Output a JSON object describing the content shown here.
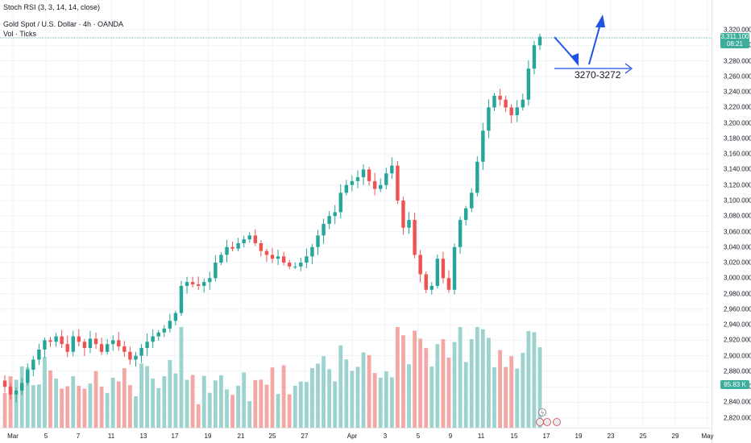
{
  "indicator": {
    "stoch_rsi": "Stoch RSI (3, 3, 14, 14, close)",
    "symbol_title": "Gold Spot / U.S. Dollar · 4h · OANDA",
    "volume": "Vol · Ticks"
  },
  "price_axis": {
    "labels": [
      "3,320.000",
      "3,300.000",
      "3,280.000",
      "3,260.000",
      "3,240.000",
      "3,220.000",
      "3,200.000",
      "3,180.000",
      "3,160.000",
      "3,140.000",
      "3,120.000",
      "3,100.000",
      "3,080.000",
      "3,060.000",
      "3,040.000",
      "3,020.000",
      "3,000.000",
      "2,980.000",
      "2,960.000",
      "2,940.000",
      "2,920.000",
      "2,900.000",
      "2,880.000",
      "2,860.000",
      "2,840.000",
      "2,820.000"
    ]
  },
  "time_axis": {
    "labels": [
      "Mar",
      "5",
      "7",
      "11",
      "13",
      "17",
      "19",
      "21",
      "25",
      "27",
      "Apr",
      "3",
      "5",
      "9",
      "11",
      "15",
      "17",
      "19",
      "23",
      "25",
      "29",
      "May"
    ]
  },
  "last_price": {
    "value": "3,311.100",
    "countdown": "08:21",
    "color": "#3dae9b"
  },
  "volume_badge": {
    "value": "85.83 K",
    "color": "#3dae9b"
  },
  "annotation": {
    "label": "3270-3272",
    "color": "#1e53e5"
  },
  "colors": {
    "up": "#26a69a",
    "down": "#ef5350",
    "vol_up": "#9dd3ce",
    "vol_down": "#f4a8a6",
    "grid": "#f0f3fa"
  },
  "chart_data": {
    "type": "candlestick",
    "symbol": "Gold Spot / U.S. Dollar",
    "timeframe": "4h",
    "y_range": [
      2810,
      3325
    ],
    "series_close": [
      2860,
      2850,
      2855,
      2865,
      2882,
      2895,
      2908,
      2920,
      2918,
      2925,
      2915,
      2905,
      2925,
      2918,
      2910,
      2922,
      2915,
      2905,
      2915,
      2920,
      2912,
      2905,
      2895,
      2900,
      2910,
      2918,
      2925,
      2930,
      2935,
      2945,
      2955,
      2990,
      2995,
      2992,
      2990,
      2995,
      3000,
      3020,
      3030,
      3040,
      3038,
      3045,
      3050,
      3055,
      3045,
      3035,
      3030,
      3025,
      3028,
      3020,
      3015,
      3015,
      3020,
      3028,
      3040,
      3055,
      3070,
      3080,
      3085,
      3110,
      3120,
      3125,
      3130,
      3140,
      3125,
      3115,
      3120,
      3135,
      3145,
      3100,
      3065,
      3075,
      3030,
      3005,
      2985,
      2990,
      3025,
      3000,
      2985,
      3040,
      3075,
      3090,
      3110,
      3150,
      3190,
      3220,
      3235,
      3230,
      3220,
      3210,
      3220,
      3230,
      3270,
      3300,
      3311.1
    ],
    "target_zone": "3270-3272",
    "last_close": 3311.1,
    "volume_last": "85.83 K"
  }
}
